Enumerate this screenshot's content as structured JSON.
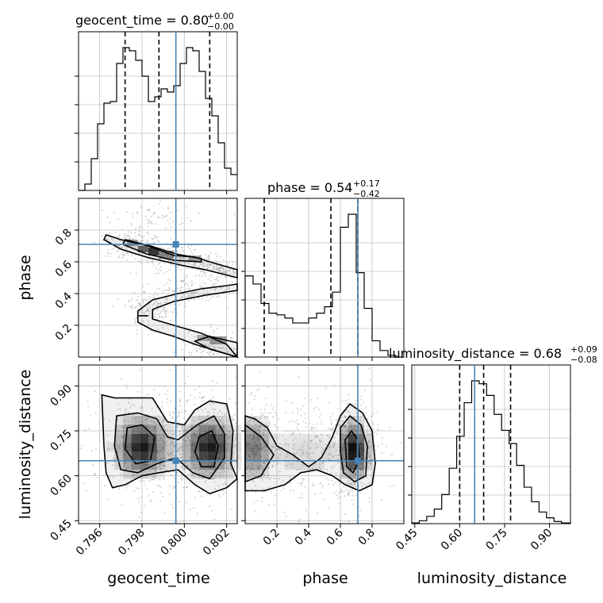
{
  "colors": {
    "truth": "#4682b4",
    "line": "#000000",
    "grid": "#c0c0c0"
  },
  "chart_data": {
    "type": "corner",
    "parameters": [
      "geocent_time",
      "phase",
      "luminosity_distance"
    ],
    "truths": {
      "geocent_time": 0.7996,
      "phase": 0.71,
      "luminosity_distance": 0.65
    },
    "panels": {
      "geocent_time_hist": {
        "title_main": "geocent_time = 0.80",
        "title_sup": "+0.00",
        "title_sub": "−0.00",
        "xlim": [
          0.795,
          0.8025
        ],
        "bins": [
          0.795,
          0.7953,
          0.7956,
          0.7959,
          0.7962,
          0.7965,
          0.7968,
          0.7971,
          0.7974,
          0.7977,
          0.798,
          0.7983,
          0.7986,
          0.7989,
          0.7992,
          0.7995,
          0.7998,
          0.8001,
          0.8004,
          0.8007,
          0.801,
          0.8013,
          0.8016,
          0.8019,
          0.8022,
          0.8025
        ],
        "counts": [
          0,
          0.04,
          0.2,
          0.42,
          0.55,
          0.56,
          0.8,
          0.9,
          0.88,
          0.82,
          0.72,
          0.56,
          0.59,
          0.64,
          0.62,
          0.66,
          0.8,
          0.9,
          0.88,
          0.75,
          0.58,
          0.47,
          0.3,
          0.14,
          0.1
        ],
        "quantiles": [
          0.7972,
          0.7988,
          0.8012
        ]
      },
      "phase_hist": {
        "title_main": "phase = 0.54",
        "title_sup": "+0.17",
        "title_sub": "−0.42",
        "xlim": [
          0.0,
          1.0
        ],
        "ticks": [
          0.2,
          0.4,
          0.6,
          0.8
        ],
        "bins": [
          0.0,
          0.05,
          0.1,
          0.15,
          0.2,
          0.25,
          0.3,
          0.35,
          0.4,
          0.45,
          0.5,
          0.55,
          0.6,
          0.65,
          0.7,
          0.75,
          0.8,
          0.85,
          0.9,
          0.95,
          1.0
        ],
        "counts": [
          0.5,
          0.45,
          0.33,
          0.27,
          0.26,
          0.24,
          0.21,
          0.21,
          0.24,
          0.27,
          0.31,
          0.4,
          0.8,
          0.88,
          0.52,
          0.3,
          0.1,
          0.04,
          0.01,
          0.0
        ],
        "quantiles": [
          0.12,
          0.54,
          0.71
        ]
      },
      "luminosity_distance_hist": {
        "title_main": "luminosity_distance = 0.68",
        "title_sup": "+0.09",
        "title_sub": "−0.08",
        "xlim": [
          0.44,
          0.97
        ],
        "ticks": [
          0.45,
          0.6,
          0.75,
          0.9
        ],
        "bins": [
          0.44,
          0.465,
          0.49,
          0.515,
          0.54,
          0.565,
          0.59,
          0.615,
          0.64,
          0.665,
          0.69,
          0.715,
          0.74,
          0.765,
          0.79,
          0.815,
          0.84,
          0.865,
          0.89,
          0.915,
          0.94,
          0.97
        ],
        "counts": [
          0.005,
          0.02,
          0.05,
          0.1,
          0.2,
          0.38,
          0.6,
          0.83,
          0.98,
          0.96,
          0.88,
          0.75,
          0.64,
          0.55,
          0.4,
          0.25,
          0.15,
          0.08,
          0.04,
          0.015,
          0.005
        ],
        "quantiles": [
          0.6,
          0.68,
          0.77
        ]
      },
      "phase_vs_geocent": {
        "xlim": [
          0.795,
          0.8025
        ],
        "ylim": [
          0.0,
          1.0
        ],
        "yticks": [
          0.2,
          0.4,
          0.6,
          0.8
        ],
        "contours": [
          [
            [
              0.7963,
              0.77
            ],
            [
              0.797,
              0.74
            ],
            [
              0.7983,
              0.7
            ],
            [
              0.7995,
              0.64
            ],
            [
              0.8005,
              0.63
            ],
            [
              0.8012,
              0.6
            ],
            [
              0.8025,
              0.55
            ],
            [
              0.8025,
              0.5
            ],
            [
              0.801,
              0.55
            ],
            [
              0.7998,
              0.58
            ],
            [
              0.7982,
              0.63
            ],
            [
              0.797,
              0.68
            ],
            [
              0.7962,
              0.74
            ]
          ],
          [
            [
              0.7972,
              0.74
            ],
            [
              0.7984,
              0.7
            ],
            [
              0.7996,
              0.65
            ],
            [
              0.8008,
              0.62
            ],
            [
              0.8008,
              0.6
            ],
            [
              0.7995,
              0.61
            ],
            [
              0.7982,
              0.65
            ],
            [
              0.7971,
              0.71
            ]
          ],
          [
            [
              0.8025,
              0.0
            ],
            [
              0.8005,
              0.08
            ],
            [
              0.7995,
              0.13
            ],
            [
              0.7985,
              0.17
            ],
            [
              0.7978,
              0.22
            ],
            [
              0.7978,
              0.29
            ],
            [
              0.7985,
              0.36
            ],
            [
              0.7997,
              0.4
            ],
            [
              0.8008,
              0.43
            ],
            [
              0.802,
              0.45
            ],
            [
              0.8025,
              0.46
            ],
            [
              0.8025,
              0.42
            ],
            [
              0.801,
              0.39
            ],
            [
              0.7995,
              0.35
            ],
            [
              0.7985,
              0.3
            ],
            [
              0.7985,
              0.24
            ],
            [
              0.7995,
              0.2
            ],
            [
              0.8008,
              0.15
            ],
            [
              0.802,
              0.08
            ]
          ],
          [
            [
              0.8025,
              0.0
            ],
            [
              0.8012,
              0.05
            ],
            [
              0.8005,
              0.1
            ],
            [
              0.8012,
              0.13
            ],
            [
              0.8025,
              0.09
            ]
          ]
        ]
      },
      "dist_vs_geocent": {
        "xlim": [
          0.795,
          0.8025
        ],
        "ylim": [
          0.44,
          0.97
        ],
        "xticks": [
          0.796,
          0.798,
          0.8,
          0.802
        ],
        "yticks": [
          0.45,
          0.6,
          0.75,
          0.9
        ],
        "contours": [
          [
            [
              0.7961,
              0.87
            ],
            [
              0.7967,
              0.86
            ],
            [
              0.7975,
              0.86
            ],
            [
              0.7985,
              0.86
            ],
            [
              0.7992,
              0.78
            ],
            [
              0.8,
              0.77
            ],
            [
              0.8005,
              0.82
            ],
            [
              0.8012,
              0.85
            ],
            [
              0.802,
              0.84
            ],
            [
              0.8023,
              0.75
            ],
            [
              0.8022,
              0.64
            ],
            [
              0.8025,
              0.59
            ],
            [
              0.802,
              0.56
            ],
            [
              0.8012,
              0.54
            ],
            [
              0.8005,
              0.57
            ],
            [
              0.7997,
              0.62
            ],
            [
              0.7988,
              0.61
            ],
            [
              0.798,
              0.6
            ],
            [
              0.7972,
              0.57
            ],
            [
              0.7966,
              0.56
            ],
            [
              0.7963,
              0.61
            ],
            [
              0.7962,
              0.7
            ]
          ],
          [
            [
              0.7968,
              0.8
            ],
            [
              0.7978,
              0.81
            ],
            [
              0.7987,
              0.79
            ],
            [
              0.7992,
              0.73
            ],
            [
              0.7997,
              0.72
            ],
            [
              0.8006,
              0.77
            ],
            [
              0.8014,
              0.8
            ],
            [
              0.8019,
              0.74
            ],
            [
              0.8019,
              0.66
            ],
            [
              0.8012,
              0.59
            ],
            [
              0.8004,
              0.61
            ],
            [
              0.7996,
              0.66
            ],
            [
              0.7987,
              0.64
            ],
            [
              0.7978,
              0.61
            ],
            [
              0.797,
              0.62
            ],
            [
              0.7967,
              0.7
            ]
          ],
          [
            [
              0.7973,
              0.76
            ],
            [
              0.798,
              0.77
            ],
            [
              0.7986,
              0.73
            ],
            [
              0.7984,
              0.65
            ],
            [
              0.7977,
              0.64
            ],
            [
              0.7972,
              0.69
            ]
          ],
          [
            [
              0.8007,
              0.73
            ],
            [
              0.8013,
              0.75
            ],
            [
              0.8016,
              0.7
            ],
            [
              0.8014,
              0.63
            ],
            [
              0.8008,
              0.63
            ],
            [
              0.8005,
              0.68
            ]
          ]
        ]
      },
      "dist_vs_phase": {
        "xlim": [
          0.0,
          1.0
        ],
        "ylim": [
          0.44,
          0.97
        ],
        "xticks": [
          0.2,
          0.4,
          0.6,
          0.8
        ],
        "contours": [
          [
            [
              0.0,
              0.8
            ],
            [
              0.06,
              0.79
            ],
            [
              0.14,
              0.76
            ],
            [
              0.2,
              0.7
            ],
            [
              0.3,
              0.67
            ],
            [
              0.4,
              0.63
            ],
            [
              0.48,
              0.66
            ],
            [
              0.55,
              0.73
            ],
            [
              0.6,
              0.8
            ],
            [
              0.66,
              0.84
            ],
            [
              0.74,
              0.81
            ],
            [
              0.8,
              0.75
            ],
            [
              0.82,
              0.64
            ],
            [
              0.8,
              0.57
            ],
            [
              0.72,
              0.55
            ],
            [
              0.63,
              0.57
            ],
            [
              0.55,
              0.6
            ],
            [
              0.45,
              0.62
            ],
            [
              0.35,
              0.61
            ],
            [
              0.25,
              0.57
            ],
            [
              0.12,
              0.55
            ],
            [
              0.0,
              0.55
            ]
          ],
          [
            [
              0.0,
              0.77
            ],
            [
              0.1,
              0.73
            ],
            [
              0.18,
              0.67
            ],
            [
              0.1,
              0.6
            ],
            [
              0.0,
              0.58
            ]
          ],
          [
            [
              0.6,
              0.76
            ],
            [
              0.66,
              0.8
            ],
            [
              0.73,
              0.77
            ],
            [
              0.77,
              0.7
            ],
            [
              0.76,
              0.6
            ],
            [
              0.69,
              0.58
            ],
            [
              0.62,
              0.61
            ],
            [
              0.6,
              0.68
            ]
          ],
          [
            [
              0.63,
              0.72
            ],
            [
              0.67,
              0.75
            ],
            [
              0.71,
              0.72
            ],
            [
              0.72,
              0.65
            ],
            [
              0.68,
              0.61
            ],
            [
              0.64,
              0.63
            ]
          ]
        ]
      }
    },
    "axis_labels": {
      "x_left": "geocent_time",
      "x_mid": "phase",
      "x_right": "luminosity_distance",
      "y_mid": "phase",
      "y_bottom": "luminosity_distance"
    }
  }
}
